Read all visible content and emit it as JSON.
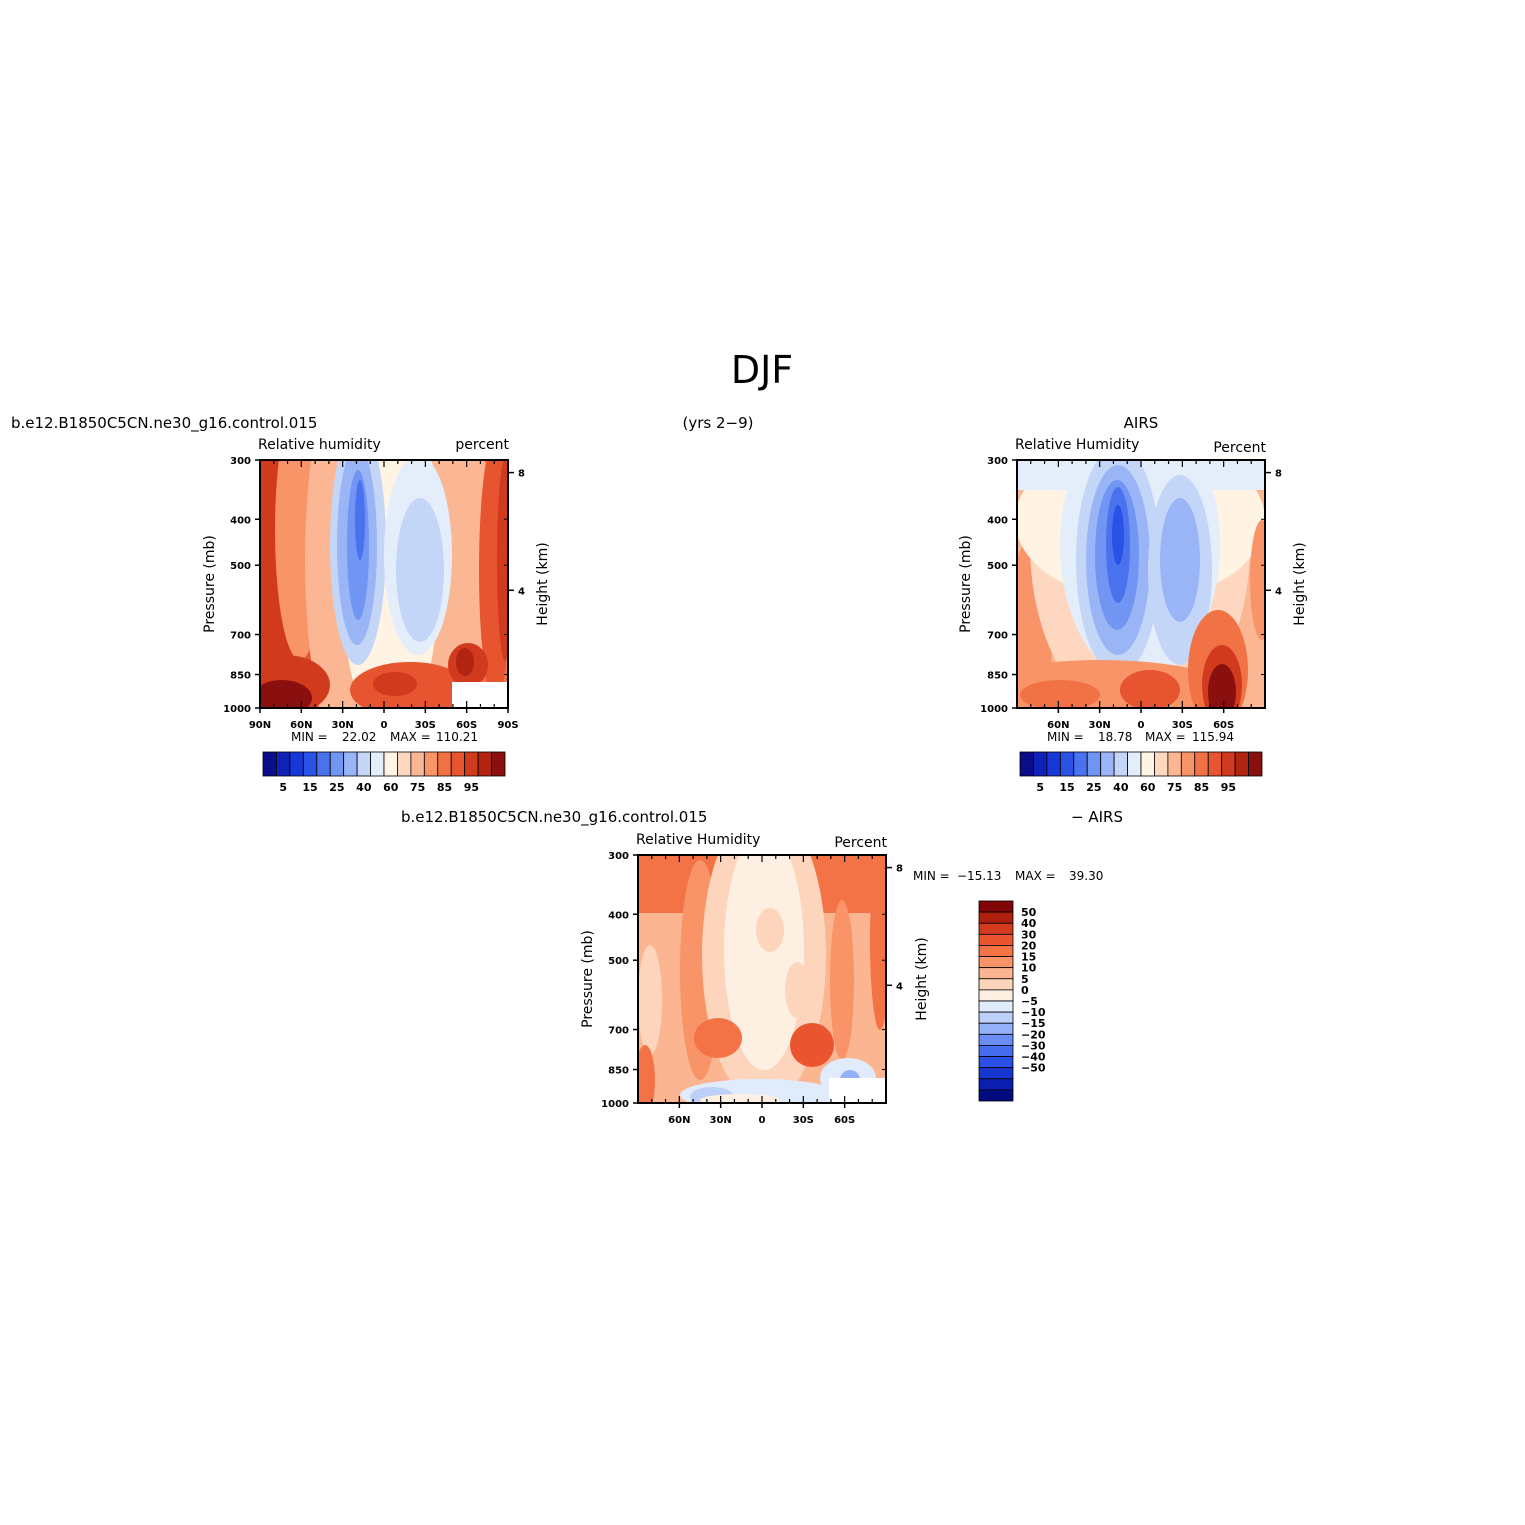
{
  "figure": {
    "title": "DJF",
    "case_name": "b.e12.B1850C5CN.ne30_g16.control.015",
    "years": "(yrs 2−9)"
  },
  "colors": {
    "abs": [
      "#0a0e8a",
      "#0f22b8",
      "#1737d6",
      "#2a52e6",
      "#4a72ee",
      "#7195f2",
      "#9ab5f5",
      "#c4d6f8",
      "#e4eefb",
      "#fff3e3",
      "#fdd7c0",
      "#fbb693",
      "#f89468",
      "#f17345",
      "#e65430",
      "#d13a1d",
      "#b22412",
      "#8a1010"
    ],
    "diff": [
      "#000b80",
      "#0a1fb0",
      "#1736d0",
      "#2a50e6",
      "#466cf0",
      "#6a8ef5",
      "#93b0f8",
      "#bcd0fa",
      "#e0ebfc",
      "#fdf0e3",
      "#fdd4bc",
      "#fbb590",
      "#f89467",
      "#f47346",
      "#ea552f",
      "#d43a1d",
      "#b0200f",
      "#800608"
    ]
  },
  "chart_data": [
    {
      "type": "heatmap",
      "subtitle_left": "b.e12.B1850C5CN.ne30_g16.control.015",
      "left_label": "Relative humidity",
      "right_label": "percent",
      "ylabel": "Pressure (mb)",
      "y2label": "Height (km)",
      "yticks": [
        300,
        400,
        500,
        700,
        850,
        1000
      ],
      "y2ticks": [
        8,
        4
      ],
      "xticks": [
        "90N",
        "60N",
        "30N",
        "0",
        "30S",
        "60S",
        "90S"
      ],
      "stats": {
        "min_label": "MIN =",
        "min": "22.02",
        "max_label": "MAX =",
        "max": "110.21"
      },
      "colorbar_labels": [
        "5",
        "15",
        "25",
        "40",
        "60",
        "75",
        "85",
        "95"
      ]
    },
    {
      "type": "heatmap",
      "subtitle_right": "AIRS",
      "left_label": "Relative Humidity",
      "right_label": "Percent",
      "ylabel": "Pressure (mb)",
      "y2label": "Height (km)",
      "yticks": [
        300,
        400,
        500,
        700,
        850,
        1000
      ],
      "y2ticks": [
        8,
        4
      ],
      "xticks": [
        "60N",
        "30N",
        "0",
        "30S",
        "60S"
      ],
      "stats": {
        "min_label": "MIN =",
        "min": "18.78",
        "max_label": "MAX =",
        "max": "115.94"
      },
      "colorbar_labels": [
        "5",
        "15",
        "25",
        "40",
        "60",
        "75",
        "85",
        "95"
      ]
    },
    {
      "type": "heatmap",
      "subtitle_left": "b.e12.B1850C5CN.ne30_g16.control.015",
      "subtitle_right": "− AIRS",
      "left_label": "Relative Humidity",
      "right_label": "Percent",
      "ylabel": "Pressure (mb)",
      "y2label": "Height (km)",
      "yticks": [
        300,
        400,
        500,
        700,
        850,
        1000
      ],
      "y2ticks": [
        8,
        4
      ],
      "xticks": [
        "60N",
        "30N",
        "0",
        "30S",
        "60S"
      ],
      "stats": {
        "min_label": "MIN =",
        "min": "−15.13",
        "max_label": "MAX =",
        "max": "39.30"
      },
      "colorbar_labels": [
        "50",
        "40",
        "30",
        "20",
        "15",
        "10",
        "5",
        "0",
        "−5",
        "−10",
        "−15",
        "−20",
        "−30",
        "−40",
        "−50"
      ]
    }
  ]
}
